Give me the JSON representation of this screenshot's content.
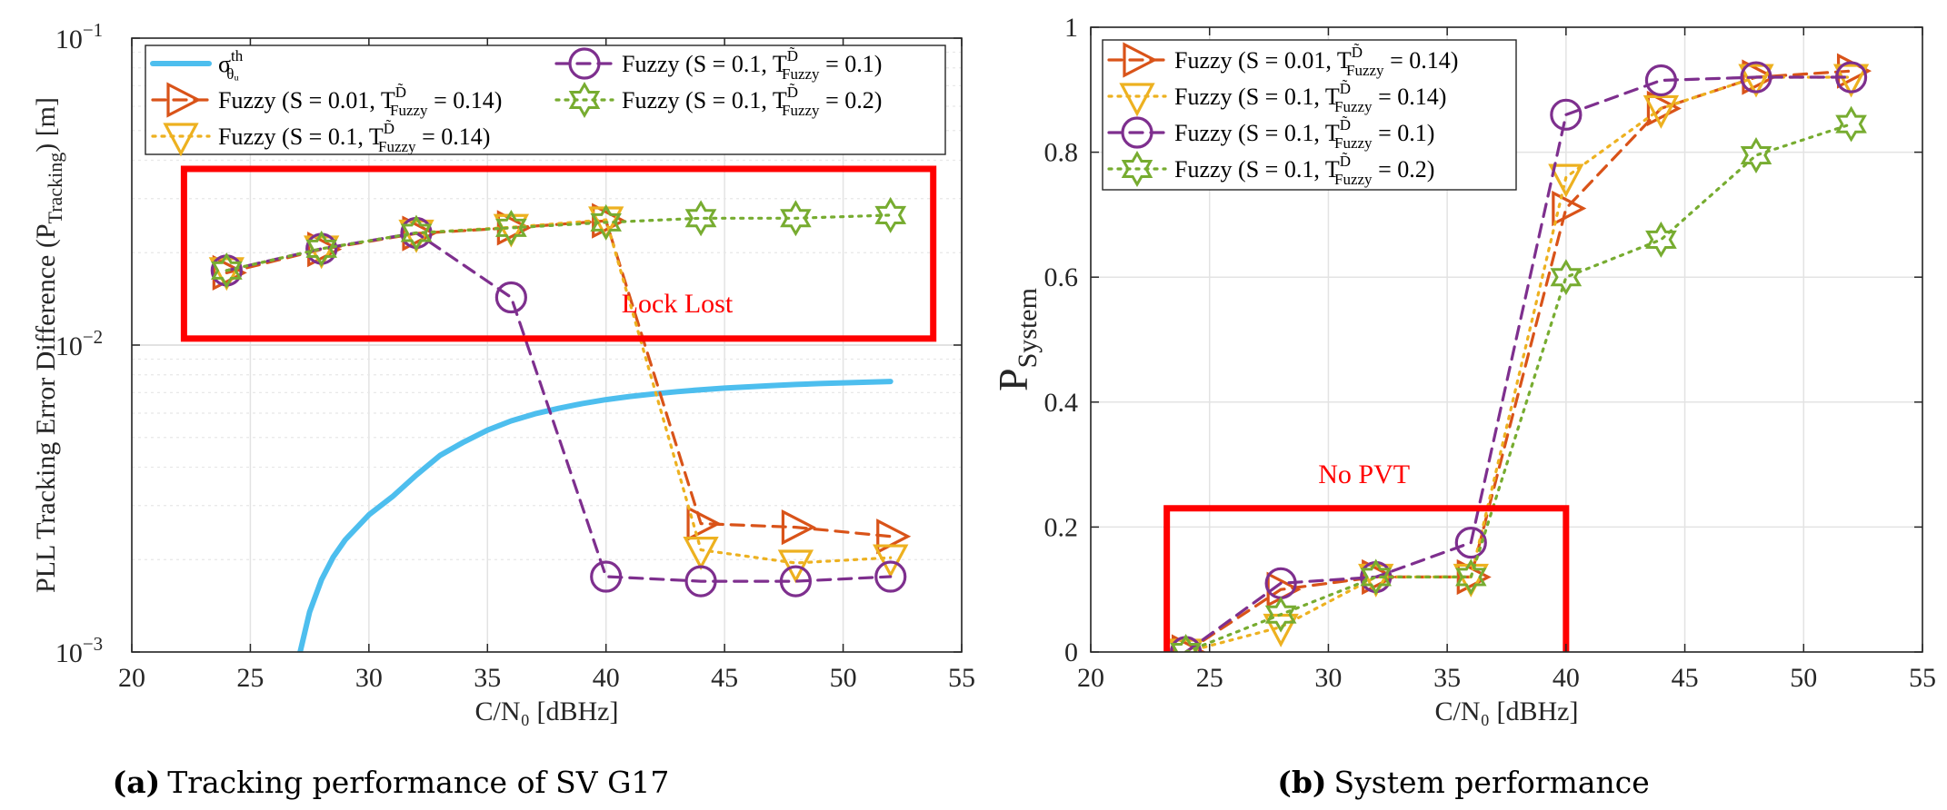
{
  "colors": {
    "sigma": "#4DBEEE",
    "fuzzy_001_014": "#D95319",
    "fuzzy_01_014": "#EDB120",
    "fuzzy_01_01": "#7E2F8E",
    "fuzzy_01_02": "#77AC30",
    "highlight": "#ff0000"
  },
  "chart_data": [
    {
      "type": "line",
      "panel": "a",
      "caption_label": "(a)",
      "caption": "Tracking performance of SV G17",
      "xlabel": "C/N₀ [dBHz]",
      "ylabel": "PLL Tracking Error Difference (P",
      "ylabel_sub": "Tracking",
      "ylabel_end": ") [m]",
      "xlim": [
        20,
        55
      ],
      "ylim": [
        0.001,
        0.1
      ],
      "yscale": "log",
      "xticks": [
        "20",
        "25",
        "30",
        "35",
        "40",
        "45",
        "50",
        "55"
      ],
      "yticks": [
        {
          "base": "10",
          "exp": "−1"
        },
        {
          "base": "10",
          "exp": "−2"
        },
        {
          "base": "10",
          "exp": "−3"
        }
      ],
      "legend_position": "top",
      "series": [
        {
          "id": "sigma",
          "name": "σ",
          "name_sup": "th",
          "name_sub": "θᵤ",
          "style": "solid",
          "marker": "none",
          "x": [
            27.1,
            27.5,
            28,
            28.5,
            29,
            30,
            31,
            32,
            33,
            34,
            35,
            36,
            37,
            38,
            39,
            40,
            41,
            42,
            43,
            44,
            45,
            46,
            47,
            48,
            49,
            50,
            51,
            52
          ],
          "values": [
            0.001,
            0.00135,
            0.00172,
            0.00204,
            0.00232,
            0.0028,
            0.00321,
            0.00377,
            0.00437,
            0.00483,
            0.00528,
            0.00566,
            0.00597,
            0.00622,
            0.00645,
            0.00664,
            0.0068,
            0.00693,
            0.00705,
            0.00715,
            0.00724,
            0.00731,
            0.00738,
            0.00744,
            0.00749,
            0.00753,
            0.00757,
            0.00761
          ]
        },
        {
          "id": "fuzzy_001_014",
          "name": "Fuzzy (S = 0.01, T",
          "name_sup": "D̃",
          "name_sub": "Fuzzy",
          "name_end": " = 0.14)",
          "style": "dash",
          "marker": "triangle-right",
          "x": [
            24,
            28,
            32,
            36,
            40,
            44,
            48,
            52
          ],
          "values": [
            0.0172,
            0.0205,
            0.0231,
            0.0241,
            0.0254,
            0.00262,
            0.00255,
            0.00238
          ]
        },
        {
          "id": "fuzzy_01_014",
          "name": "Fuzzy (S = 0.1, T",
          "name_sup": "D̃",
          "name_sub": "Fuzzy",
          "name_end": " = 0.14)",
          "style": "dot",
          "marker": "triangle-down",
          "x": [
            24,
            28,
            32,
            36,
            40,
            44,
            48,
            52
          ],
          "values": [
            0.0175,
            0.0206,
            0.0232,
            0.0242,
            0.0256,
            0.00215,
            0.00195,
            0.00203
          ]
        },
        {
          "id": "fuzzy_01_01",
          "name": "Fuzzy (S = 0.1, T",
          "name_sup": "D̃",
          "name_sub": "Fuzzy",
          "name_end": " = 0.1)",
          "style": "dash",
          "marker": "circle",
          "x": [
            24,
            28,
            32,
            36,
            40,
            44,
            48,
            52
          ],
          "values": [
            0.0175,
            0.0206,
            0.0232,
            0.0143,
            0.00176,
            0.0017,
            0.0017,
            0.00176
          ]
        },
        {
          "id": "fuzzy_01_02",
          "name": "Fuzzy (S = 0.1, T",
          "name_sup": "D̃",
          "name_sub": "Fuzzy",
          "name_end": " = 0.2)",
          "style": "dot",
          "marker": "hexagram",
          "x": [
            24,
            28,
            32,
            36,
            40,
            44,
            48,
            52
          ],
          "values": [
            0.0175,
            0.0206,
            0.0232,
            0.0241,
            0.0251,
            0.0259,
            0.0259,
            0.0265
          ]
        }
      ],
      "annotations": [
        {
          "text": "Lock Lost",
          "x": 43,
          "y": 0.0128
        }
      ],
      "highlight_box": {
        "x": [
          22.2,
          53.8
        ],
        "y": [
          0.0105,
          0.0375
        ]
      }
    },
    {
      "type": "line",
      "panel": "b",
      "caption_label": "(b)",
      "caption": "System performance",
      "xlabel": "C/N₀ [dBHz]",
      "ylabel": "P",
      "ylabel_sub": "System",
      "xlim": [
        20,
        55
      ],
      "ylim": [
        0,
        1
      ],
      "yscale": "linear",
      "xticks": [
        "20",
        "25",
        "30",
        "35",
        "40",
        "45",
        "50",
        "55"
      ],
      "yticks": [
        "0",
        "0.2",
        "0.4",
        "0.6",
        "0.8",
        "1"
      ],
      "legend_position": "top-left",
      "series": [
        {
          "id": "fuzzy_001_014",
          "name": "Fuzzy (S = 0.01, T",
          "name_sup": "D̃",
          "name_sub": "Fuzzy",
          "name_end": " = 0.14)",
          "style": "dash",
          "marker": "triangle-right",
          "x": [
            24,
            28,
            32,
            36,
            40,
            44,
            48,
            52
          ],
          "values": [
            0,
            0.1,
            0.12,
            0.12,
            0.71,
            0.87,
            0.92,
            0.93
          ]
        },
        {
          "id": "fuzzy_01_014",
          "name": "Fuzzy (S = 0.1, T",
          "name_sup": "D̃",
          "name_sub": "Fuzzy",
          "name_end": " = 0.14)",
          "style": "dot",
          "marker": "triangle-down",
          "x": [
            24,
            28,
            32,
            36,
            40,
            44,
            48,
            52
          ],
          "values": [
            0,
            0.04,
            0.12,
            0.12,
            0.76,
            0.87,
            0.92,
            0.92
          ]
        },
        {
          "id": "fuzzy_01_01",
          "name": "Fuzzy (S = 0.1, T",
          "name_sup": "D̃",
          "name_sub": "Fuzzy",
          "name_end": " = 0.1)",
          "style": "dash",
          "marker": "circle",
          "x": [
            24,
            28,
            32,
            36,
            40,
            44,
            48,
            52
          ],
          "values": [
            0,
            0.11,
            0.12,
            0.175,
            0.86,
            0.915,
            0.92,
            0.92
          ]
        },
        {
          "id": "fuzzy_01_02",
          "name": "Fuzzy (S = 0.1, T",
          "name_sup": "D̃",
          "name_sub": "Fuzzy",
          "name_end": " = 0.2)",
          "style": "dot",
          "marker": "hexagram",
          "x": [
            24,
            28,
            32,
            36,
            40,
            44,
            48,
            52
          ],
          "values": [
            0,
            0.06,
            0.12,
            0.12,
            0.6,
            0.66,
            0.795,
            0.845
          ]
        }
      ],
      "annotations": [
        {
          "text": "No PVT",
          "x": 31.5,
          "y": 0.27
        }
      ],
      "highlight_box": {
        "x": [
          23.2,
          40
        ],
        "y": [
          0,
          0.23
        ]
      }
    }
  ]
}
